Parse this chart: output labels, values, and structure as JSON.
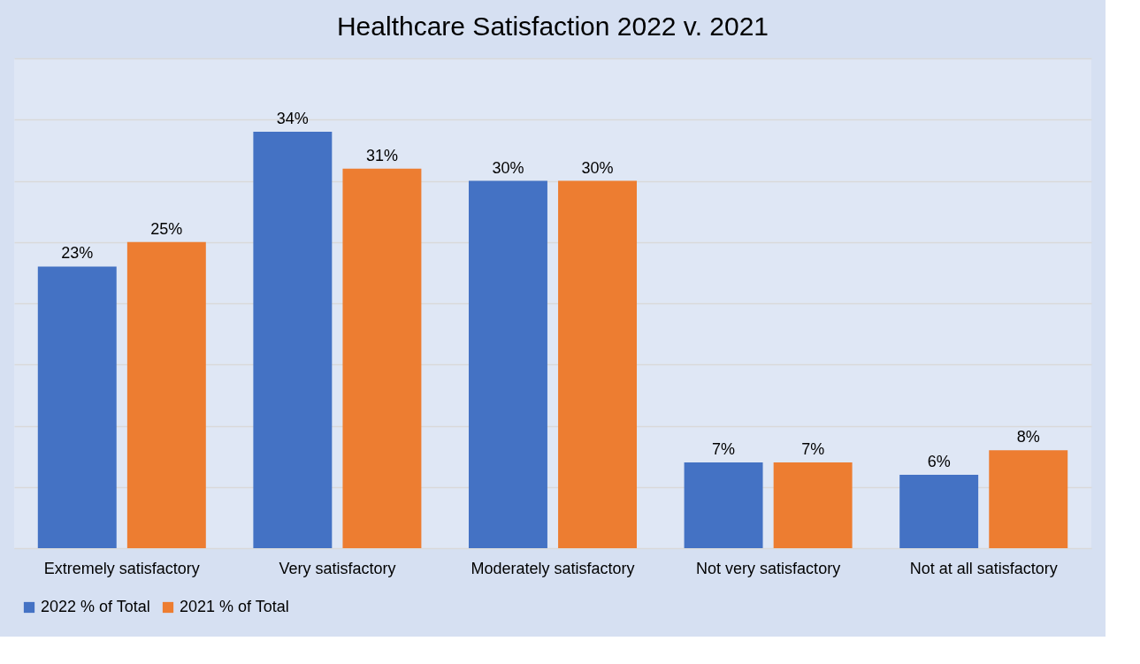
{
  "chart_data": {
    "type": "bar",
    "title": "Healthcare Satisfaction 2022 v. 2021",
    "categories": [
      "Extremely satisfactory",
      "Very satisfactory",
      "Moderately satisfactory",
      "Not very satisfactory",
      "Not at all satisfactory"
    ],
    "series": [
      {
        "name": "2022 % of Total",
        "color": "#4472c4",
        "values": [
          23,
          34,
          30,
          7,
          6
        ],
        "value_labels": [
          "23%",
          "34%",
          "30%",
          "7%",
          "6%"
        ]
      },
      {
        "name": "2021 % of Total",
        "color": "#ed7d31",
        "values": [
          25,
          31,
          30,
          7,
          8
        ],
        "value_labels": [
          "25%",
          "31%",
          "30%",
          "7%",
          "8%"
        ]
      }
    ],
    "ylim": [
      0,
      40
    ],
    "yticks": [
      {
        "value": 0,
        "label": null
      },
      {
        "value": 5,
        "label": null
      },
      {
        "value": 10,
        "label": null
      },
      {
        "value": 15,
        "label": null
      },
      {
        "value": 20,
        "label": null
      },
      {
        "value": 25,
        "label": null
      },
      {
        "value": 30,
        "label": null
      },
      {
        "value": 35,
        "label": null
      },
      {
        "value": 40,
        "label": null
      }
    ],
    "grid": "y",
    "legend": "bottom",
    "tick_labels": "x"
  }
}
